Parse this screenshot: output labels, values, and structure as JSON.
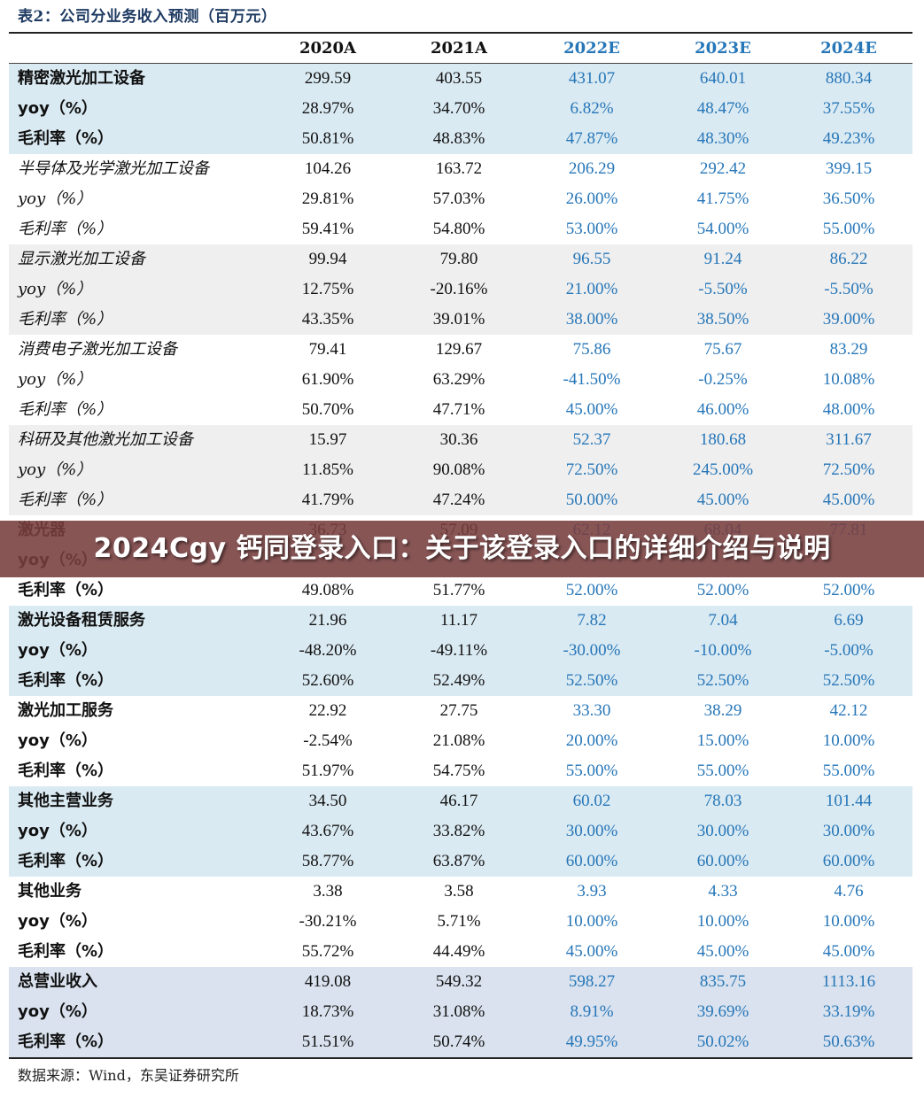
{
  "title": "表2：公司分业务收入预测（百万元）",
  "header": {
    "columns": [
      "2020A",
      "2021A",
      "2022E",
      "2023E",
      "2024E"
    ]
  },
  "colors": {
    "estimate_text": "#2676b8",
    "shade_blue": "#daeaf2",
    "shade_gray": "#efefef",
    "shade_total": "#d9e2ee",
    "overlay": "#783e3e"
  },
  "segments": [
    {
      "name": "精密激光加工设备",
      "style": "bold",
      "shade": "blue",
      "rows": [
        {
          "label": "精密激光加工设备",
          "values": [
            "299.59",
            "403.55",
            "431.07",
            "640.01",
            "880.34"
          ]
        },
        {
          "label": "yoy（%）",
          "values": [
            "28.97%",
            "34.70%",
            "6.82%",
            "48.47%",
            "37.55%"
          ]
        },
        {
          "label": "毛利率（%）",
          "values": [
            "50.81%",
            "48.83%",
            "47.87%",
            "48.30%",
            "49.23%"
          ]
        }
      ]
    },
    {
      "name": "半导体及光学激光加工设备",
      "style": "italic",
      "shade": "white",
      "rows": [
        {
          "label": "半导体及光学激光加工设备",
          "values": [
            "104.26",
            "163.72",
            "206.29",
            "292.42",
            "399.15"
          ]
        },
        {
          "label": "yoy（%）",
          "values": [
            "29.81%",
            "57.03%",
            "26.00%",
            "41.75%",
            "36.50%"
          ]
        },
        {
          "label": "毛利率（%）",
          "values": [
            "59.41%",
            "54.80%",
            "53.00%",
            "54.00%",
            "55.00%"
          ]
        }
      ]
    },
    {
      "name": "显示激光加工设备",
      "style": "italic",
      "shade": "gray",
      "rows": [
        {
          "label": "显示激光加工设备",
          "values": [
            "99.94",
            "79.80",
            "96.55",
            "91.24",
            "86.22"
          ]
        },
        {
          "label": "yoy（%）",
          "values": [
            "12.75%",
            "-20.16%",
            "21.00%",
            "-5.50%",
            "-5.50%"
          ]
        },
        {
          "label": "毛利率（%）",
          "values": [
            "43.35%",
            "39.01%",
            "38.00%",
            "38.50%",
            "39.00%"
          ]
        }
      ]
    },
    {
      "name": "消费电子激光加工设备",
      "style": "italic",
      "shade": "white",
      "rows": [
        {
          "label": "消费电子激光加工设备",
          "values": [
            "79.41",
            "129.67",
            "75.86",
            "75.67",
            "83.29"
          ]
        },
        {
          "label": "yoy（%）",
          "values": [
            "61.90%",
            "63.29%",
            "-41.50%",
            "-0.25%",
            "10.08%"
          ]
        },
        {
          "label": "毛利率（%）",
          "values": [
            "50.70%",
            "47.71%",
            "45.00%",
            "46.00%",
            "48.00%"
          ]
        }
      ]
    },
    {
      "name": "科研及其他激光加工设备",
      "style": "italic",
      "shade": "gray",
      "rows": [
        {
          "label": "科研及其他激光加工设备",
          "values": [
            "15.97",
            "30.36",
            "52.37",
            "180.68",
            "311.67"
          ]
        },
        {
          "label": "yoy（%）",
          "values": [
            "11.85%",
            "90.08%",
            "72.50%",
            "245.00%",
            "72.50%"
          ]
        },
        {
          "label": "毛利率（%）",
          "values": [
            "41.79%",
            "47.24%",
            "50.00%",
            "45.00%",
            "45.00%"
          ]
        }
      ]
    },
    {
      "name": "激光器",
      "style": "bold",
      "shade": "white",
      "rows": [
        {
          "label": "激光器",
          "values": [
            "36.73",
            "57.09",
            "62.12",
            "68.04",
            "77.81"
          ]
        },
        {
          "label": "yoy（%）",
          "values": [
            "",
            "",
            "",
            "",
            ""
          ]
        },
        {
          "label": "毛利率（%）",
          "values": [
            "49.08%",
            "51.77%",
            "52.00%",
            "52.00%",
            "52.00%"
          ]
        }
      ]
    },
    {
      "name": "激光设备租赁服务",
      "style": "bold",
      "shade": "blue",
      "rows": [
        {
          "label": "激光设备租赁服务",
          "values": [
            "21.96",
            "11.17",
            "7.82",
            "7.04",
            "6.69"
          ]
        },
        {
          "label": "yoy（%）",
          "values": [
            "-48.20%",
            "-49.11%",
            "-30.00%",
            "-10.00%",
            "-5.00%"
          ]
        },
        {
          "label": "毛利率（%）",
          "values": [
            "52.60%",
            "52.49%",
            "52.50%",
            "52.50%",
            "52.50%"
          ]
        }
      ]
    },
    {
      "name": "激光加工服务",
      "style": "bold",
      "shade": "white",
      "rows": [
        {
          "label": "激光加工服务",
          "values": [
            "22.92",
            "27.75",
            "33.30",
            "38.29",
            "42.12"
          ]
        },
        {
          "label": "yoy（%）",
          "values": [
            "-2.54%",
            "21.08%",
            "20.00%",
            "15.00%",
            "10.00%"
          ]
        },
        {
          "label": "毛利率（%）",
          "values": [
            "51.97%",
            "54.75%",
            "55.00%",
            "55.00%",
            "55.00%"
          ]
        }
      ]
    },
    {
      "name": "其他主营业务",
      "style": "bold",
      "shade": "blue",
      "rows": [
        {
          "label": "其他主营业务",
          "values": [
            "34.50",
            "46.17",
            "60.02",
            "78.03",
            "101.44"
          ]
        },
        {
          "label": "yoy（%）",
          "values": [
            "43.67%",
            "33.82%",
            "30.00%",
            "30.00%",
            "30.00%"
          ]
        },
        {
          "label": "毛利率（%）",
          "values": [
            "58.77%",
            "63.87%",
            "60.00%",
            "60.00%",
            "60.00%"
          ]
        }
      ]
    },
    {
      "name": "其他业务",
      "style": "bold",
      "shade": "white",
      "rows": [
        {
          "label": "其他业务",
          "values": [
            "3.38",
            "3.58",
            "3.93",
            "4.33",
            "4.76"
          ]
        },
        {
          "label": "yoy（%）",
          "values": [
            "-30.21%",
            "5.71%",
            "10.00%",
            "10.00%",
            "10.00%"
          ]
        },
        {
          "label": "毛利率（%）",
          "values": [
            "55.72%",
            "44.49%",
            "45.00%",
            "45.00%",
            "45.00%"
          ]
        }
      ]
    },
    {
      "name": "总营业收入",
      "style": "bold",
      "shade": "total",
      "rows": [
        {
          "label": "总营业收入",
          "values": [
            "419.08",
            "549.32",
            "598.27",
            "835.75",
            "1113.16"
          ]
        },
        {
          "label": "yoy（%）",
          "values": [
            "18.73%",
            "31.08%",
            "8.91%",
            "39.69%",
            "33.19%"
          ]
        },
        {
          "label": "毛利率（%）",
          "values": [
            "51.51%",
            "50.74%",
            "49.95%",
            "50.02%",
            "50.63%"
          ]
        }
      ]
    }
  ],
  "source": "数据来源：Wind，东吴证券研究所",
  "overlay": {
    "text": "2024Cgy 钙同登录入口：关于该登录入口的详细介绍与说明"
  }
}
